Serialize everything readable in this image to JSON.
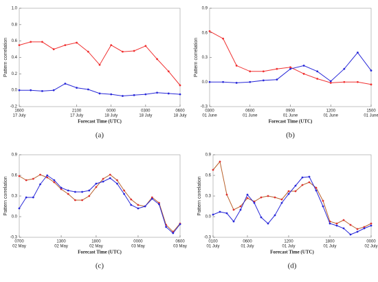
{
  "chart_data": [
    {
      "type": "line",
      "caption": "(a)",
      "xlabel": "Forecast Time (UTC)",
      "ylabel": "Pattern correlation",
      "x": [
        0,
        1,
        2,
        3,
        4,
        5,
        6,
        7,
        8,
        9,
        10,
        11,
        12,
        13,
        14
      ],
      "xlim": [
        0,
        14
      ],
      "xticks": [
        {
          "value": 0,
          "label": "1600",
          "date": "17 July"
        },
        {
          "value": 5,
          "label": "2100",
          "date": "17 July"
        },
        {
          "value": 8,
          "label": "0000",
          "date": "18 July"
        },
        {
          "value": 11,
          "label": "0300",
          "date": "18 July"
        },
        {
          "value": 14,
          "label": "0600",
          "date": "18 July"
        }
      ],
      "ylim": [
        -0.2,
        1.0
      ],
      "yticks": [
        -0.2,
        {
          "value": 0,
          "label": "0.0"
        },
        0.2,
        0.4,
        0.6,
        0.8,
        {
          "value": 1.0,
          "label": "1.0"
        }
      ],
      "series": [
        {
          "color": "#f03030",
          "values": [
            0.55,
            0.59,
            0.59,
            0.5,
            0.55,
            0.58,
            0.47,
            0.31,
            0.55,
            0.47,
            0.48,
            0.54,
            0.38,
            0.23,
            0.06
          ]
        },
        {
          "color": "#2828d8",
          "values": [
            0.0,
            0.0,
            -0.01,
            0.0,
            0.08,
            0.03,
            0.01,
            -0.04,
            -0.05,
            -0.07,
            -0.06,
            -0.05,
            -0.03,
            -0.04,
            -0.05
          ]
        }
      ]
    },
    {
      "type": "line",
      "caption": "(b)",
      "xlabel": "Forecast Time (UTC)",
      "ylabel": "Pattern correlation",
      "x": [
        0,
        1,
        2,
        3,
        4,
        5,
        6,
        7,
        8,
        9,
        10,
        11,
        12
      ],
      "xlim": [
        0,
        12
      ],
      "xticks": [
        {
          "value": 0,
          "label": "0300",
          "date": "01 June"
        },
        {
          "value": 3,
          "label": "0600",
          "date": "01 June"
        },
        {
          "value": 6,
          "label": "0900",
          "date": "01 June"
        },
        {
          "value": 9,
          "label": "1200",
          "date": "01 June"
        },
        {
          "value": 12,
          "label": "1500",
          "date": "01 June"
        }
      ],
      "ylim": [
        -0.3,
        0.9
      ],
      "yticks": [
        -0.3,
        {
          "value": 0,
          "label": "0.0"
        },
        0.3,
        0.6,
        0.9
      ],
      "series": [
        {
          "color": "#f03030",
          "values": [
            0.62,
            0.53,
            0.2,
            0.13,
            0.13,
            0.16,
            0.18,
            0.1,
            0.04,
            -0.01,
            0.0,
            0.0,
            -0.03
          ]
        },
        {
          "color": "#2828d8",
          "values": [
            0.0,
            0.0,
            -0.01,
            0.0,
            0.02,
            0.03,
            0.16,
            0.2,
            0.13,
            0.01,
            0.16,
            0.36,
            0.14
          ]
        }
      ]
    },
    {
      "type": "line",
      "caption": "(c)",
      "xlabel": "Forecast Time (UTC)",
      "ylabel": "Pattern correlation",
      "x": [
        0,
        1,
        2,
        3,
        4,
        5,
        6,
        7,
        8,
        9,
        10,
        11,
        12,
        13,
        14,
        15,
        16,
        17,
        18,
        19,
        20,
        21,
        22,
        23
      ],
      "xlim": [
        0,
        23
      ],
      "xticks": [
        {
          "value": 0,
          "label": "0700",
          "date": "02 May"
        },
        {
          "value": 6,
          "label": "1300",
          "date": "02 May"
        },
        {
          "value": 11,
          "label": "1800",
          "date": "02 May"
        },
        {
          "value": 17,
          "label": "0000",
          "date": "03 May"
        },
        {
          "value": 23,
          "label": "0600",
          "date": "03 May"
        }
      ],
      "ylim": [
        -0.3,
        0.9
      ],
      "yticks": [
        -0.3,
        {
          "value": 0,
          "label": "0.0"
        },
        0.3,
        0.6,
        0.9
      ],
      "series": [
        {
          "color": "#b8602a",
          "values": [
            0.59,
            0.53,
            0.55,
            0.61,
            0.57,
            0.5,
            0.4,
            0.33,
            0.24,
            0.24,
            0.3,
            0.43,
            0.55,
            0.61,
            0.53,
            0.38,
            0.25,
            0.17,
            0.15,
            0.28,
            0.2,
            -0.12,
            -0.22,
            -0.1
          ]
        },
        {
          "color": "#2828d8",
          "values": [
            0.12,
            0.28,
            0.28,
            0.47,
            0.6,
            0.53,
            0.42,
            0.38,
            0.36,
            0.36,
            0.38,
            0.48,
            0.51,
            0.56,
            0.48,
            0.33,
            0.17,
            0.12,
            0.15,
            0.26,
            0.18,
            -0.15,
            -0.24,
            -0.11
          ]
        }
      ]
    },
    {
      "type": "line",
      "caption": "(d)",
      "xlabel": "Forecast Time (UTC)",
      "ylabel": "Pattern correlation",
      "x": [
        0,
        1,
        2,
        3,
        4,
        5,
        6,
        7,
        8,
        9,
        10,
        11,
        12,
        13,
        14,
        15,
        16,
        17,
        18,
        19,
        20,
        21,
        22,
        23
      ],
      "xlim": [
        0,
        23
      ],
      "xticks": [
        {
          "value": 0,
          "label": "0100",
          "date": "01 July"
        },
        {
          "value": 5,
          "label": "0600",
          "date": "01 July"
        },
        {
          "value": 11,
          "label": "1200",
          "date": "01 July"
        },
        {
          "value": 17,
          "label": "1800",
          "date": "01 July"
        },
        {
          "value": 23,
          "label": "0000",
          "date": "02 July"
        }
      ],
      "ylim": [
        -0.3,
        0.9
      ],
      "yticks": [
        -0.3,
        {
          "value": 0,
          "label": "0.0"
        },
        0.3,
        0.6,
        0.9
      ],
      "series": [
        {
          "color": "#b8602a",
          "values": [
            0.68,
            0.8,
            0.32,
            0.1,
            0.15,
            0.27,
            0.22,
            0.28,
            0.3,
            0.28,
            0.25,
            0.37,
            0.37,
            0.46,
            0.5,
            0.42,
            0.23,
            -0.07,
            -0.1,
            -0.05,
            -0.12,
            -0.18,
            -0.15,
            -0.1
          ]
        },
        {
          "color": "#2828d8",
          "values": [
            0.03,
            0.07,
            0.05,
            -0.07,
            0.1,
            0.32,
            0.2,
            -0.01,
            -0.1,
            0.02,
            0.2,
            0.33,
            0.45,
            0.57,
            0.58,
            0.38,
            0.15,
            -0.1,
            -0.13,
            -0.17,
            -0.26,
            -0.22,
            -0.17,
            -0.13
          ]
        }
      ]
    }
  ]
}
